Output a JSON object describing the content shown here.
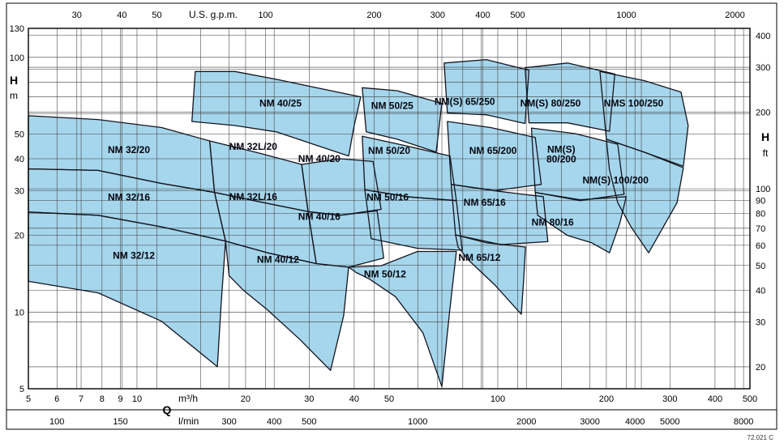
{
  "figure": {
    "background": "#ffffff",
    "region_fill": "#a5d6ec",
    "region_stroke": "#14141e",
    "grid_color": "#3c3c3c",
    "frame_color": "#000000",
    "drawing_code": "72.021 C"
  },
  "chart_data": {
    "type": "area",
    "description_axes": "log-log pump selection chart: flow Q vs head H",
    "x_axis": {
      "label_top": "U.S. g.p.m.",
      "q_symbol": "Q",
      "label_bottom_primary": "m³/h",
      "label_bottom_secondary": "l/min",
      "m3h_range": [
        5,
        500
      ],
      "ticks_m3h": [
        5,
        6,
        7,
        8,
        9,
        10,
        20,
        30,
        40,
        50,
        100,
        200,
        300,
        400,
        500
      ],
      "minor_m3h": [
        15,
        60,
        70,
        80,
        90,
        150,
        250
      ],
      "ticks_gpm": [
        30,
        40,
        50,
        100,
        200,
        300,
        400,
        500,
        1000,
        2000
      ],
      "ticks_lmin": [
        100,
        150,
        300,
        400,
        500,
        1000,
        2000,
        3000,
        4000,
        5000,
        8000
      ],
      "gpm_to_m3h": 0.22712,
      "lmin_to_m3h": 0.06
    },
    "y_axis": {
      "label_left": "H",
      "unit_left": "m",
      "label_right": "H",
      "unit_right": "ft",
      "m_range": [
        5,
        130
      ],
      "ticks_m": [
        130,
        100,
        50,
        40,
        30,
        20,
        10,
        5
      ],
      "minor_m": [
        60,
        70,
        80,
        90
      ],
      "ticks_ft": [
        400,
        300,
        200,
        100,
        90,
        80,
        70,
        60,
        50,
        40,
        30,
        20
      ],
      "ft_to_m": 0.3048
    },
    "regions": [
      {
        "label": "NM 40/25",
        "label_at": [
          25,
          66
        ],
        "points": [
          [
            14.5,
            88
          ],
          [
            18.7,
            88
          ],
          [
            24.3,
            82
          ],
          [
            31.4,
            76
          ],
          [
            41.7,
            70
          ],
          [
            40,
            54
          ],
          [
            38.6,
            41
          ],
          [
            24.3,
            51
          ],
          [
            18.7,
            54
          ],
          [
            14.2,
            56
          ]
        ]
      },
      {
        "label": "NM 50/25",
        "label_at": [
          51,
          64.5
        ],
        "points": [
          [
            42.1,
            76
          ],
          [
            52.6,
            74
          ],
          [
            70,
            66
          ],
          [
            67.5,
            42.5
          ],
          [
            52.6,
            47.7
          ],
          [
            43.2,
            51
          ]
        ]
      },
      {
        "label": "NM(S) 65/250",
        "label_at": [
          81,
          67
        ],
        "points": [
          [
            71,
            95
          ],
          [
            93,
            98
          ],
          [
            122,
            89
          ],
          [
            119,
            55
          ],
          [
            93,
            59.5
          ],
          [
            72.5,
            60.5
          ]
        ]
      },
      {
        "label": "NM(S) 80/250",
        "label_at": [
          140,
          66
        ],
        "points": [
          [
            119,
            91
          ],
          [
            156,
            95
          ],
          [
            211,
            86
          ],
          [
            204,
            51.3
          ],
          [
            156,
            55.3
          ],
          [
            122,
            55.3
          ]
        ]
      },
      {
        "label": "NMS 100/250",
        "label_at": [
          238,
          66
        ],
        "points": [
          [
            192,
            88
          ],
          [
            255,
            81
          ],
          [
            322,
            73
          ],
          [
            337,
            54
          ],
          [
            327,
            37.4
          ],
          [
            255,
            42.4
          ],
          [
            200,
            47.7
          ]
        ]
      },
      {
        "label": "NM 32/20",
        "label_at": [
          9.5,
          43.4
        ],
        "points": [
          [
            5,
            59
          ],
          [
            7.8,
            57
          ],
          [
            11.7,
            53
          ],
          [
            15.9,
            47
          ],
          [
            16.4,
            29.5
          ],
          [
            11.7,
            32
          ],
          [
            7.8,
            36
          ],
          [
            5,
            36.5
          ]
        ]
      },
      {
        "label": "NM 32L/20",
        "label_at": [
          21,
          44.7
        ],
        "points": [
          [
            15.9,
            47
          ],
          [
            21.9,
            42
          ],
          [
            28.6,
            38
          ],
          [
            29.8,
            24.8
          ],
          [
            21.9,
            27.1
          ],
          [
            16.4,
            29.5
          ]
        ]
      },
      {
        "label": "NM 40/20",
        "label_at": [
          32,
          40
        ],
        "points": [
          [
            28.6,
            38
          ],
          [
            36.6,
            40
          ],
          [
            45.1,
            39
          ],
          [
            47.5,
            25.3
          ],
          [
            36.6,
            24
          ],
          [
            29.8,
            24.8
          ]
        ]
      },
      {
        "label": "NM 50/20",
        "label_at": [
          50,
          43
        ],
        "points": [
          [
            42.1,
            49
          ],
          [
            55.5,
            45
          ],
          [
            73.7,
            41
          ],
          [
            76.8,
            27.4
          ],
          [
            56.9,
            28.3
          ],
          [
            42.8,
            30.2
          ]
        ]
      },
      {
        "label": "NM 65/200",
        "label_at": [
          97,
          43
        ],
        "points": [
          [
            72.5,
            56
          ],
          [
            95.5,
            53
          ],
          [
            127,
            48.5
          ],
          [
            132,
            31.7
          ],
          [
            98,
            30
          ],
          [
            74.3,
            31.7
          ]
        ]
      },
      {
        "label": "NM(S) 80/200",
        "label_lines": [
          "NM(S)",
          "80/200"
        ],
        "label_at": [
          150,
          41.6
        ],
        "points": [
          [
            124,
            52.8
          ],
          [
            164,
            50.2
          ],
          [
            215,
            45.6
          ],
          [
            224,
            29
          ],
          [
            169,
            27.4
          ],
          [
            127,
            29.5
          ]
        ]
      },
      {
        "label": "NM(S) 100/200",
        "label_at": [
          212,
          33
        ],
        "points": [
          [
            200,
            47.7
          ],
          [
            255,
            42.4
          ],
          [
            327,
            36.9
          ],
          [
            314,
            26.9
          ],
          [
            262,
            17.1
          ],
          [
            234,
            21.6
          ],
          [
            215,
            26.9
          ],
          [
            204,
            36.2
          ]
        ]
      },
      {
        "label": "NM 32/16",
        "label_at": [
          9.5,
          28.2
        ],
        "points": [
          [
            5,
            36.5
          ],
          [
            7.8,
            36
          ],
          [
            11.7,
            32
          ],
          [
            16.4,
            29.5
          ],
          [
            17.6,
            19
          ],
          [
            11.7,
            21.6
          ],
          [
            7.8,
            24
          ],
          [
            5,
            24.7
          ]
        ]
      },
      {
        "label": "NM 32L/16",
        "label_at": [
          21,
          28.3
        ],
        "points": [
          [
            16.4,
            29.5
          ],
          [
            21.9,
            27.1
          ],
          [
            29.8,
            24.8
          ],
          [
            31.4,
            15.5
          ],
          [
            23,
            17.1
          ],
          [
            17.6,
            19
          ]
        ]
      },
      {
        "label": "NM 40/16",
        "label_at": [
          32,
          23.7
        ],
        "points": [
          [
            29.8,
            24.8
          ],
          [
            36.6,
            24
          ],
          [
            46.3,
            25
          ],
          [
            48.3,
            16.3
          ],
          [
            38.6,
            15
          ],
          [
            31.4,
            15.5
          ]
        ]
      },
      {
        "label": "NM 50/16",
        "label_at": [
          49.5,
          28.2
        ],
        "points": [
          [
            42.8,
            30.2
          ],
          [
            56.9,
            28.3
          ],
          [
            76.8,
            27.4
          ],
          [
            79.7,
            17.5
          ],
          [
            59.9,
            17.8
          ],
          [
            44.6,
            19.4
          ]
        ]
      },
      {
        "label": "NM 65/16",
        "label_at": [
          92,
          26.9
        ],
        "points": [
          [
            74.3,
            31.7
          ],
          [
            100.5,
            29.8
          ],
          [
            133.7,
            28.4
          ],
          [
            137.7,
            18.9
          ],
          [
            102,
            18.4
          ],
          [
            76.4,
            20.1
          ]
        ]
      },
      {
        "label": "NM 80/16",
        "label_at": [
          142,
          22.5
        ],
        "points": [
          [
            127,
            29.5
          ],
          [
            169,
            27.6
          ],
          [
            227,
            28.4
          ],
          [
            218,
            22.4
          ],
          [
            204,
            17.1
          ],
          [
            182,
            18.7
          ],
          [
            156,
            20
          ],
          [
            129,
            24
          ]
        ]
      },
      {
        "label": "NM 32/12",
        "label_at": [
          9.8,
          16.7
        ],
        "points": [
          [
            5,
            24.7
          ],
          [
            7.8,
            24
          ],
          [
            11.7,
            21.6
          ],
          [
            17.6,
            19
          ],
          [
            17.1,
            10.6
          ],
          [
            16.7,
            6.1
          ],
          [
            11.7,
            9.2
          ],
          [
            7.8,
            11.9
          ],
          [
            5,
            13.2
          ]
        ]
      },
      {
        "label": "NM 40/12",
        "label_at": [
          24.6,
          16.1
        ],
        "points": [
          [
            17.6,
            19
          ],
          [
            23,
            17.1
          ],
          [
            31.4,
            15.5
          ],
          [
            38.6,
            15
          ],
          [
            37.4,
            9.7
          ],
          [
            34.4,
            5.9
          ],
          [
            28.3,
            7.8
          ],
          [
            23,
            10.2
          ],
          [
            19.7,
            12.2
          ],
          [
            18,
            13.9
          ]
        ]
      },
      {
        "label": "NM 50/12",
        "label_at": [
          48.7,
          14.1
        ],
        "points": [
          [
            38.6,
            15
          ],
          [
            47.5,
            15.2
          ],
          [
            59.9,
            17.3
          ],
          [
            76.8,
            17.3
          ],
          [
            73.5,
            10
          ],
          [
            70,
            5.1
          ],
          [
            62,
            8.3
          ],
          [
            52,
            11.5
          ],
          [
            44,
            13.5
          ],
          [
            40.5,
            14.3
          ]
        ]
      },
      {
        "label": "NM 65/12",
        "label_at": [
          89,
          16.4
        ],
        "points": [
          [
            76.4,
            20.1
          ],
          [
            93,
            18.7
          ],
          [
            119.3,
            18
          ],
          [
            118,
            13.4
          ],
          [
            116.2,
            9.8
          ],
          [
            98,
            12.8
          ],
          [
            83,
            16
          ],
          [
            77.6,
            18
          ]
        ]
      }
    ]
  }
}
